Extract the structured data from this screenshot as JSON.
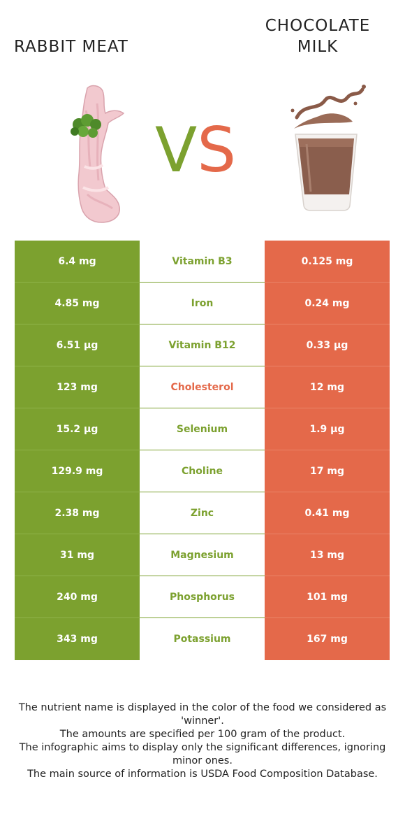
{
  "food_left": {
    "name": "RABBIT MEAT"
  },
  "food_right": {
    "name": "CHOCOLATE MILK"
  },
  "vs": {
    "v": "V",
    "s": "S"
  },
  "colors": {
    "left": "#7ca12f",
    "right": "#e4694a"
  },
  "rows": [
    {
      "left": "6.4 mg",
      "nutrient": "Vitamin B3",
      "right": "0.125 mg",
      "winner": "left"
    },
    {
      "left": "4.85 mg",
      "nutrient": "Iron",
      "right": "0.24 mg",
      "winner": "left"
    },
    {
      "left": "6.51 µg",
      "nutrient": "Vitamin B12",
      "right": "0.33 µg",
      "winner": "left"
    },
    {
      "left": "123 mg",
      "nutrient": "Cholesterol",
      "right": "12 mg",
      "winner": "right"
    },
    {
      "left": "15.2 µg",
      "nutrient": "Selenium",
      "right": "1.9 µg",
      "winner": "left"
    },
    {
      "left": "129.9 mg",
      "nutrient": "Choline",
      "right": "17 mg",
      "winner": "left"
    },
    {
      "left": "2.38 mg",
      "nutrient": "Zinc",
      "right": "0.41 mg",
      "winner": "left"
    },
    {
      "left": "31 mg",
      "nutrient": "Magnesium",
      "right": "13 mg",
      "winner": "left"
    },
    {
      "left": "240 mg",
      "nutrient": "Phosphorus",
      "right": "101 mg",
      "winner": "left"
    },
    {
      "left": "343 mg",
      "nutrient": "Potassium",
      "right": "167 mg",
      "winner": "left"
    }
  ],
  "footer": {
    "line1": "The nutrient name is displayed in the color of the food we considered as 'winner'.",
    "line2": "The amounts are specified per 100 gram of the product.",
    "line3": "The infographic aims to display only the significant differences, ignoring minor ones.",
    "line4": "The main source of information is USDA Food Composition Database."
  }
}
